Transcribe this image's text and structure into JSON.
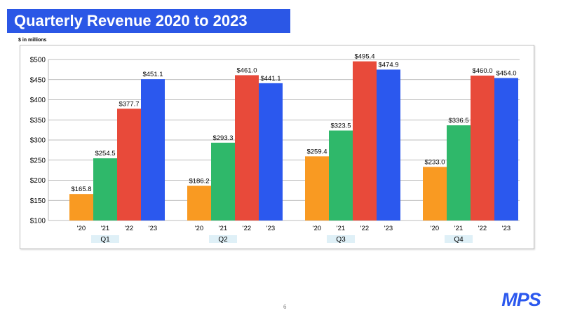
{
  "slide": {
    "title": "Quarterly Revenue 2020 to 2023",
    "units_note": "$ in millions",
    "page_number": "6",
    "logo_text": "MPS"
  },
  "colors": {
    "title_bg": "#2b57e6",
    "label_bg": "#dff0f7",
    "series": [
      "#f99a22",
      "#2fb86a",
      "#e84a3a",
      "#2b58ee"
    ],
    "logo": "#2b58ee"
  },
  "chart_data": {
    "type": "bar",
    "title": "",
    "xlabel": "",
    "ylabel": "",
    "groups": [
      "Q1",
      "Q2",
      "Q3",
      "Q4"
    ],
    "categories": [
      "'20",
      "'21",
      "'22",
      "'23"
    ],
    "series": [
      {
        "group": "Q1",
        "values": [
          165.8,
          254.5,
          377.7,
          451.1
        ],
        "labels": [
          "$165.8",
          "$254.5",
          "$377.7",
          "$451.1"
        ]
      },
      {
        "group": "Q2",
        "values": [
          186.2,
          293.3,
          461.0,
          441.1
        ],
        "labels": [
          "$186.2",
          "$293.3",
          "$461.0",
          "$441.1"
        ]
      },
      {
        "group": "Q3",
        "values": [
          259.4,
          323.5,
          495.4,
          474.9
        ],
        "labels": [
          "$259.4",
          "$323.5",
          "$495.4",
          "$474.9"
        ]
      },
      {
        "group": "Q4",
        "values": [
          233.0,
          336.5,
          460.0,
          454.0
        ],
        "labels": [
          "$233.0",
          "$336.5",
          "$460.0",
          "$454.0"
        ]
      }
    ],
    "ylim": [
      100,
      500
    ],
    "y_ticks": [
      100,
      150,
      200,
      250,
      300,
      350,
      400,
      450,
      500
    ],
    "y_tick_labels": [
      "$100",
      "$150",
      "$200",
      "$250",
      "$300",
      "$350",
      "$400",
      "$450",
      "$500"
    ],
    "grid": true,
    "legend": "none"
  }
}
